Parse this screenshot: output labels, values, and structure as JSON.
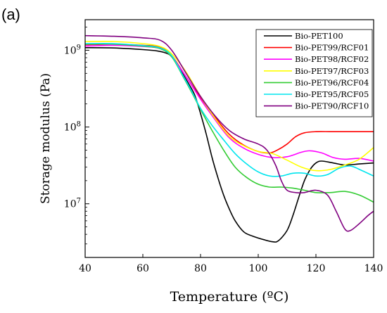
{
  "panel_label": "(a)",
  "chart_data": {
    "type": "line",
    "xlabel": "Temperature (ºC)",
    "ylabel": "Storage modulus (Pa)",
    "xlim": [
      40,
      140
    ],
    "ylim": [
      2000000,
      2500000000
    ],
    "y_scale": "log",
    "x_ticks": [
      40,
      60,
      80,
      100,
      120,
      140
    ],
    "y_ticks": [
      {
        "value": 10000000,
        "base": "10",
        "exp": "7"
      },
      {
        "value": 100000000,
        "base": "10",
        "exp": "8"
      },
      {
        "value": 1000000000,
        "base": "10",
        "exp": "9"
      }
    ],
    "grid": false,
    "legend_position": "top-right",
    "series": [
      {
        "name": "Bio-PET100",
        "color": "#000000",
        "points": [
          [
            40,
            1080000000.0
          ],
          [
            50,
            1070000000.0
          ],
          [
            60,
            1020000000.0
          ],
          [
            65,
            980000000.0
          ],
          [
            68,
            920000000.0
          ],
          [
            70,
            830000000.0
          ],
          [
            72,
            650000000.0
          ],
          [
            74,
            480000000.0
          ],
          [
            76,
            360000000.0
          ],
          [
            78,
            260000000.0
          ],
          [
            80,
            150000000.0
          ],
          [
            82,
            80000000.0
          ],
          [
            84,
            40000000.0
          ],
          [
            86,
            22000000.0
          ],
          [
            88,
            13000000.0
          ],
          [
            90,
            8500000.0
          ],
          [
            92,
            6000000.0
          ],
          [
            95,
            4300000.0
          ],
          [
            98,
            3800000.0
          ],
          [
            102,
            3400000.0
          ],
          [
            105,
            3200000.0
          ],
          [
            107,
            3300000.0
          ],
          [
            110,
            4500000.0
          ],
          [
            112,
            7000000.0
          ],
          [
            114,
            12000000.0
          ],
          [
            116,
            20000000.0
          ],
          [
            118,
            28000000.0
          ],
          [
            120,
            34000000.0
          ],
          [
            122,
            36000000.0
          ],
          [
            126,
            34000000.0
          ],
          [
            130,
            32000000.0
          ],
          [
            135,
            33000000.0
          ],
          [
            140,
            34000000.0
          ]
        ]
      },
      {
        "name": "Bio-PET99/RCF01",
        "color": "#ff0000",
        "points": [
          [
            40,
            1180000000.0
          ],
          [
            50,
            1200000000.0
          ],
          [
            60,
            1160000000.0
          ],
          [
            66,
            1100000000.0
          ],
          [
            70,
            850000000.0
          ],
          [
            75,
            450000000.0
          ],
          [
            80,
            240000000.0
          ],
          [
            85,
            135000000.0
          ],
          [
            90,
            80000000.0
          ],
          [
            95,
            58000000.0
          ],
          [
            100,
            48000000.0
          ],
          [
            104,
            46000000.0
          ],
          [
            107,
            51000000.0
          ],
          [
            110,
            60000000.0
          ],
          [
            113,
            75000000.0
          ],
          [
            116,
            84000000.0
          ],
          [
            120,
            87000000.0
          ],
          [
            125,
            87000000.0
          ],
          [
            130,
            87000000.0
          ],
          [
            135,
            87000000.0
          ],
          [
            140,
            87000000.0
          ]
        ]
      },
      {
        "name": "Bio-PET98/RCF02",
        "color": "#ff00ff",
        "points": [
          [
            40,
            1130000000.0
          ],
          [
            50,
            1160000000.0
          ],
          [
            60,
            1120000000.0
          ],
          [
            66,
            1050000000.0
          ],
          [
            70,
            820000000.0
          ],
          [
            75,
            450000000.0
          ],
          [
            80,
            230000000.0
          ],
          [
            85,
            125000000.0
          ],
          [
            90,
            72000000.0
          ],
          [
            95,
            53000000.0
          ],
          [
            100,
            44000000.0
          ],
          [
            105,
            40000000.0
          ],
          [
            110,
            41000000.0
          ],
          [
            115,
            47000000.0
          ],
          [
            118,
            49000000.0
          ],
          [
            122,
            46000000.0
          ],
          [
            126,
            40000000.0
          ],
          [
            130,
            38000000.0
          ],
          [
            135,
            39000000.0
          ],
          [
            140,
            36000000.0
          ]
        ]
      },
      {
        "name": "Bio-PET97/RCF03",
        "color": "#ffff00",
        "points": [
          [
            40,
            1300000000.0
          ],
          [
            50,
            1300000000.0
          ],
          [
            60,
            1220000000.0
          ],
          [
            66,
            1120000000.0
          ],
          [
            70,
            900000000.0
          ],
          [
            75,
            520000000.0
          ],
          [
            80,
            250000000.0
          ],
          [
            85,
            130000000.0
          ],
          [
            90,
            75000000.0
          ],
          [
            95,
            57000000.0
          ],
          [
            100,
            48000000.0
          ],
          [
            105,
            45000000.0
          ],
          [
            110,
            37000000.0
          ],
          [
            115,
            30000000.0
          ],
          [
            120,
            27000000.0
          ],
          [
            125,
            28000000.0
          ],
          [
            130,
            32000000.0
          ],
          [
            135,
            38000000.0
          ],
          [
            140,
            54000000.0
          ]
        ]
      },
      {
        "name": "Bio-PET96/RCF04",
        "color": "#33cc33",
        "points": [
          [
            40,
            1200000000.0
          ],
          [
            50,
            1200000000.0
          ],
          [
            60,
            1130000000.0
          ],
          [
            66,
            1050000000.0
          ],
          [
            70,
            820000000.0
          ],
          [
            74,
            450000000.0
          ],
          [
            77,
            280000000.0
          ],
          [
            80,
            170000000.0
          ],
          [
            84,
            90000000.0
          ],
          [
            88,
            50000000.0
          ],
          [
            92,
            30000000.0
          ],
          [
            96,
            22000000.0
          ],
          [
            100,
            18000000.0
          ],
          [
            104,
            16500000.0
          ],
          [
            108,
            16500000.0
          ],
          [
            112,
            16000000.0
          ],
          [
            116,
            15000000.0
          ],
          [
            120,
            14000000.0
          ],
          [
            125,
            14000000.0
          ],
          [
            130,
            14500000.0
          ],
          [
            135,
            13000000.0
          ],
          [
            140,
            10500000.0
          ]
        ]
      },
      {
        "name": "Bio-PET95/RCF05",
        "color": "#00e5ee",
        "points": [
          [
            40,
            1220000000.0
          ],
          [
            50,
            1220000000.0
          ],
          [
            60,
            1150000000.0
          ],
          [
            66,
            1070000000.0
          ],
          [
            70,
            850000000.0
          ],
          [
            74,
            460000000.0
          ],
          [
            77,
            290000000.0
          ],
          [
            80,
            175000000.0
          ],
          [
            84,
            105000000.0
          ],
          [
            88,
            68000000.0
          ],
          [
            92,
            45000000.0
          ],
          [
            96,
            33000000.0
          ],
          [
            100,
            26000000.0
          ],
          [
            104,
            23000000.0
          ],
          [
            108,
            23000000.0
          ],
          [
            112,
            25000000.0
          ],
          [
            116,
            25000000.0
          ],
          [
            120,
            23000000.0
          ],
          [
            124,
            24000000.0
          ],
          [
            128,
            29000000.0
          ],
          [
            132,
            31000000.0
          ],
          [
            136,
            27000000.0
          ],
          [
            140,
            23000000.0
          ]
        ]
      },
      {
        "name": "Bio-PET90/RCF10",
        "color": "#800080",
        "points": [
          [
            40,
            1550000000.0
          ],
          [
            50,
            1520000000.0
          ],
          [
            60,
            1450000000.0
          ],
          [
            66,
            1350000000.0
          ],
          [
            70,
            1000000000.0
          ],
          [
            75,
            500000000.0
          ],
          [
            80,
            250000000.0
          ],
          [
            85,
            140000000.0
          ],
          [
            90,
            90000000.0
          ],
          [
            95,
            70000000.0
          ],
          [
            100,
            60000000.0
          ],
          [
            103,
            50000000.0
          ],
          [
            106,
            32000000.0
          ],
          [
            108,
            20000000.0
          ],
          [
            110,
            15000000.0
          ],
          [
            113,
            14000000.0
          ],
          [
            116,
            14000000.0
          ],
          [
            120,
            15000000.0
          ],
          [
            124,
            13000000.0
          ],
          [
            127,
            8000000.0
          ],
          [
            130,
            4700000.0
          ],
          [
            132,
            4500000.0
          ],
          [
            135,
            5500000.0
          ],
          [
            138,
            7000000.0
          ],
          [
            140,
            8000000.0
          ]
        ]
      }
    ]
  }
}
